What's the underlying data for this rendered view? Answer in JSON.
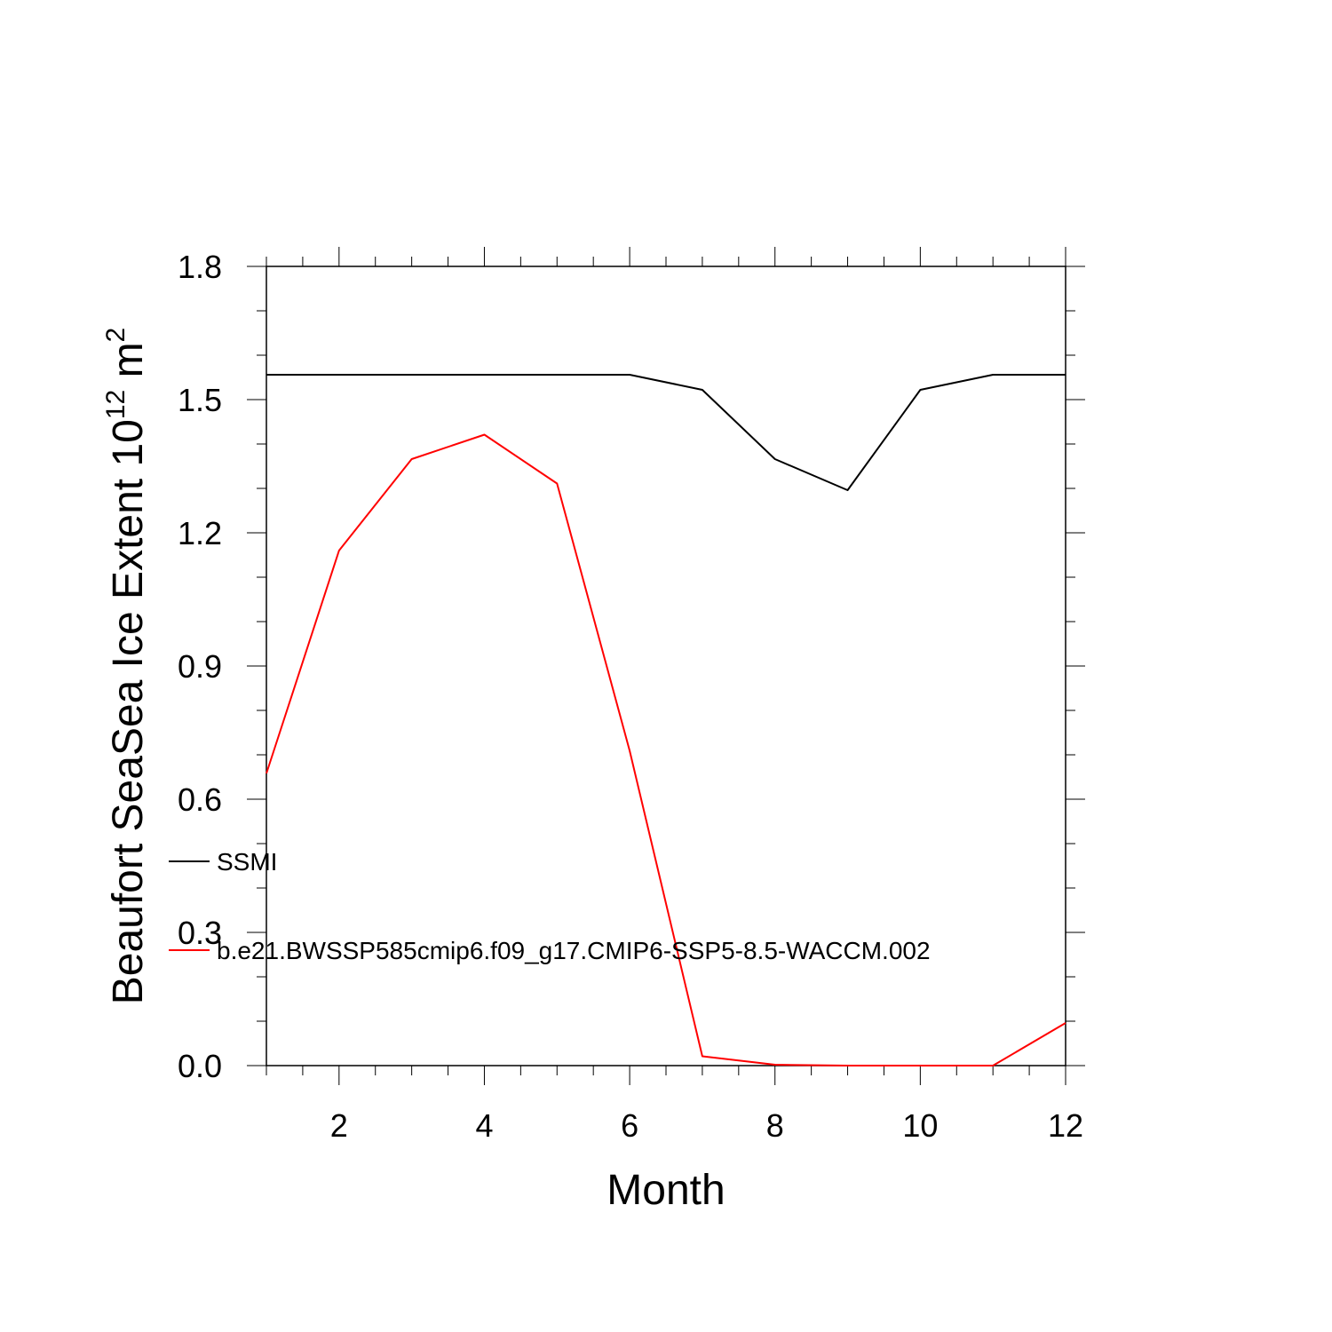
{
  "chart_data": {
    "type": "line",
    "xlabel": "Month",
    "ylabel_main": "Beaufort SeaSea Ice Extent 10",
    "ylabel_exp": "12",
    "ylabel_unit": " m",
    "ylabel_unit_exp": "2",
    "xlim": [
      1,
      12
    ],
    "ylim": [
      0.0,
      1.8
    ],
    "x_ticks": [
      2,
      4,
      6,
      8,
      10,
      12
    ],
    "x_tick_labels": [
      "2",
      "4",
      "6",
      "8",
      "10",
      "12"
    ],
    "y_ticks": [
      0.0,
      0.3,
      0.6,
      0.9,
      1.2,
      1.5,
      1.8
    ],
    "y_tick_labels": [
      "0.0",
      "0.3",
      "0.6",
      "0.9",
      "1.2",
      "1.5",
      "1.8"
    ],
    "x": [
      1,
      2,
      3,
      4,
      5,
      6,
      7,
      8,
      9,
      10,
      11,
      12
    ],
    "series": [
      {
        "name": "SSMI",
        "color": "#000000",
        "values": [
          1.556,
          1.556,
          1.556,
          1.556,
          1.556,
          1.556,
          1.522,
          1.366,
          1.296,
          1.522,
          1.556,
          1.556
        ]
      },
      {
        "name": "b.e21.BWSSP585cmip6.f09_g17.CMIP6-SSP5-8.5-WACCM.002",
        "color": "#ff0000",
        "values": [
          0.658,
          1.16,
          1.366,
          1.421,
          1.311,
          0.709,
          0.021,
          0.002,
          0.0,
          0.0,
          0.0,
          0.096
        ]
      }
    ],
    "grid": false,
    "legend_position": "lower-left"
  }
}
